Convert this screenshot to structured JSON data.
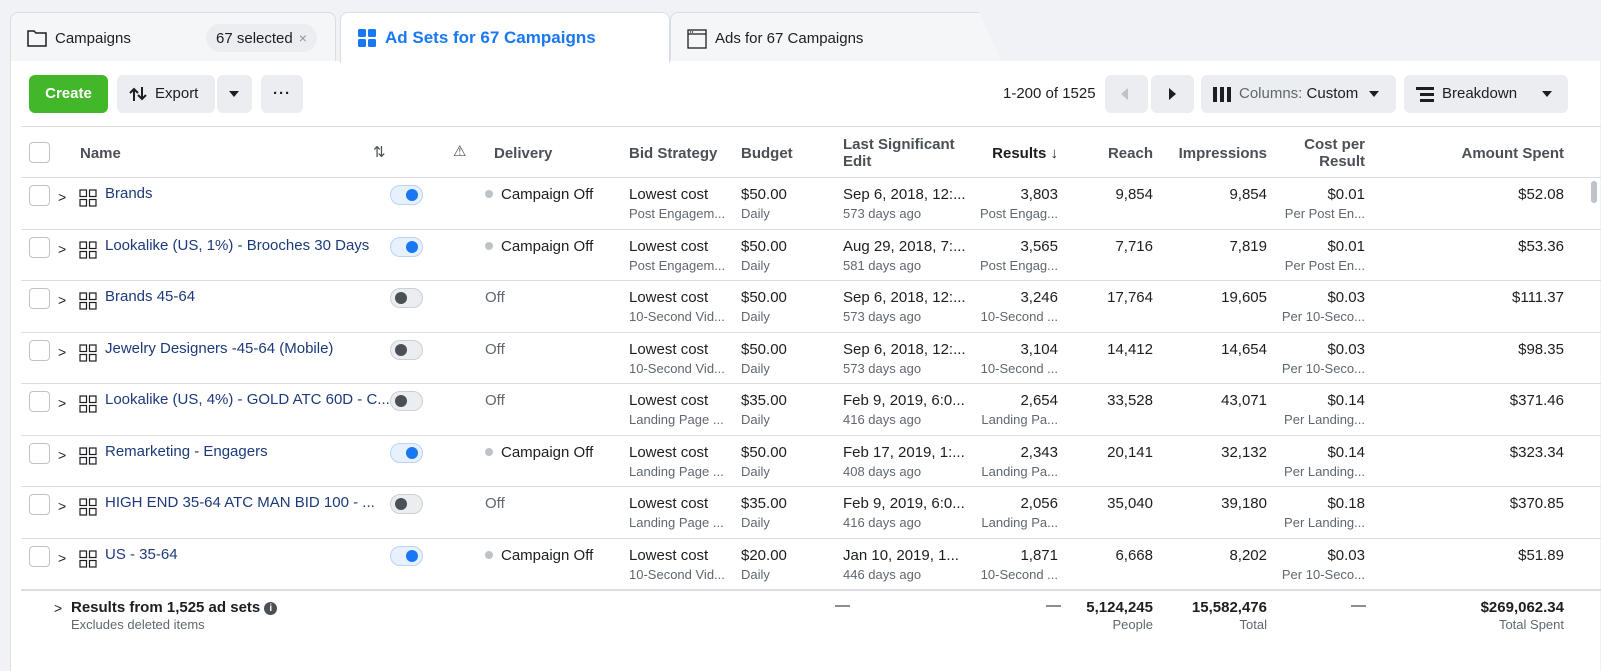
{
  "tabs": [
    {
      "label": "Campaigns",
      "icon": "folder-icon",
      "selected_chip": "67 selected",
      "chip_close": "×"
    },
    {
      "label": "Ad Sets for 67 Campaigns",
      "icon": "grid-icon"
    },
    {
      "label": "Ads for 67 Campaigns",
      "icon": "ad-window-icon"
    }
  ],
  "toolbar": {
    "create_label": "Create",
    "export_label": "Export",
    "more_label": "···",
    "pagination": "1-200 of 1525",
    "columns_prefix": "Columns:",
    "columns_value": "Custom",
    "breakdown_label": "Breakdown"
  },
  "headers": {
    "name": "Name",
    "sort_icon": "⇅",
    "warning_icon": "⚠",
    "delivery": "Delivery",
    "bid_strategy": "Bid Strategy",
    "budget": "Budget",
    "last_edit_1": "Last Significant",
    "last_edit_2": "Edit",
    "results": "Results ↓",
    "reach": "Reach",
    "impressions": "Impressions",
    "cpr_1": "Cost per",
    "cpr_2": "Result",
    "amount_spent": "Amount Spent"
  },
  "rows": [
    {
      "name": "Brands",
      "toggle_on": true,
      "delivery": "Campaign Off",
      "bid": "Lowest cost",
      "bid_sub": "Post Engagem...",
      "budget": "$50.00",
      "budget_sub": "Daily",
      "edit": "Sep 6, 2018, 12:...",
      "edit_sub": "573 days ago",
      "results": "3,803",
      "results_sub": "Post Engag...",
      "reach": "9,854",
      "impressions": "9,854",
      "cpr": "$0.01",
      "cpr_sub": "Per Post En...",
      "spent": "$52.08"
    },
    {
      "name": "Lookalike (US, 1%) - Brooches 30 Days",
      "toggle_on": true,
      "delivery": "Campaign Off",
      "bid": "Lowest cost",
      "bid_sub": "Post Engagem...",
      "budget": "$50.00",
      "budget_sub": "Daily",
      "edit": "Aug 29, 2018, 7:...",
      "edit_sub": "581 days ago",
      "results": "3,565",
      "results_sub": "Post Engag...",
      "reach": "7,716",
      "impressions": "7,819",
      "cpr": "$0.01",
      "cpr_sub": "Per Post En...",
      "spent": "$53.36"
    },
    {
      "name": "Brands 45-64",
      "toggle_on": false,
      "delivery": "Off",
      "bid": "Lowest cost",
      "bid_sub": "10-Second Vid...",
      "budget": "$50.00",
      "budget_sub": "Daily",
      "edit": "Sep 6, 2018, 12:...",
      "edit_sub": "573 days ago",
      "results": "3,246",
      "results_sub": "10-Second ...",
      "reach": "17,764",
      "impressions": "19,605",
      "cpr": "$0.03",
      "cpr_sub": "Per 10-Seco...",
      "spent": "$111.37"
    },
    {
      "name": "Jewelry Designers -45-64 (Mobile)",
      "toggle_on": false,
      "delivery": "Off",
      "bid": "Lowest cost",
      "bid_sub": "10-Second Vid...",
      "budget": "$50.00",
      "budget_sub": "Daily",
      "edit": "Sep 6, 2018, 12:...",
      "edit_sub": "573 days ago",
      "results": "3,104",
      "results_sub": "10-Second ...",
      "reach": "14,412",
      "impressions": "14,654",
      "cpr": "$0.03",
      "cpr_sub": "Per 10-Seco...",
      "spent": "$98.35"
    },
    {
      "name": "Lookalike (US, 4%) - GOLD ATC 60D - C...",
      "toggle_on": false,
      "delivery": "Off",
      "bid": "Lowest cost",
      "bid_sub": "Landing Page ...",
      "budget": "$35.00",
      "budget_sub": "Daily",
      "edit": "Feb 9, 2019, 6:0...",
      "edit_sub": "416 days ago",
      "results": "2,654",
      "results_sub": "Landing Pa...",
      "reach": "33,528",
      "impressions": "43,071",
      "cpr": "$0.14",
      "cpr_sub": "Per Landing...",
      "spent": "$371.46"
    },
    {
      "name": "Remarketing - Engagers",
      "toggle_on": true,
      "delivery": "Campaign Off",
      "bid": "Lowest cost",
      "bid_sub": "Landing Page ...",
      "budget": "$50.00",
      "budget_sub": "Daily",
      "edit": "Feb 17, 2019, 1:...",
      "edit_sub": "408 days ago",
      "results": "2,343",
      "results_sub": "Landing Pa...",
      "reach": "20,141",
      "impressions": "32,132",
      "cpr": "$0.14",
      "cpr_sub": "Per Landing...",
      "spent": "$323.34"
    },
    {
      "name": "HIGH END 35-64 ATC MAN BID 100 - ...",
      "toggle_on": false,
      "delivery": "Off",
      "bid": "Lowest cost",
      "bid_sub": "Landing Page ...",
      "budget": "$35.00",
      "budget_sub": "Daily",
      "edit": "Feb 9, 2019, 6:0...",
      "edit_sub": "416 days ago",
      "results": "2,056",
      "results_sub": "Landing Pa...",
      "reach": "35,040",
      "impressions": "39,180",
      "cpr": "$0.18",
      "cpr_sub": "Per Landing...",
      "spent": "$370.85"
    },
    {
      "name": "US - 35-64",
      "toggle_on": true,
      "delivery": "Campaign Off",
      "bid": "Lowest cost",
      "bid_sub": "10-Second Vid...",
      "budget": "$20.00",
      "budget_sub": "Daily",
      "edit": "Jan 10, 2019, 1...",
      "edit_sub": "446 days ago",
      "results": "1,871",
      "results_sub": "10-Second ...",
      "reach": "6,668",
      "impressions": "8,202",
      "cpr": "$0.03",
      "cpr_sub": "Per 10-Seco...",
      "spent": "$51.89"
    }
  ],
  "footer": {
    "title": "Results from 1,525 ad sets",
    "info_icon": "i",
    "subtitle": "Excludes deleted items",
    "edit_dash": "—",
    "results_dash": "—",
    "reach": "5,124,245",
    "reach_sub": "People",
    "impressions": "15,582,476",
    "impressions_sub": "Total",
    "cpr_dash": "—",
    "spent": "$269,062.34",
    "spent_sub": "Total Spent"
  },
  "colors": {
    "create": "#42b72a",
    "link": "#1c3a7a",
    "accent": "#1877f2"
  }
}
